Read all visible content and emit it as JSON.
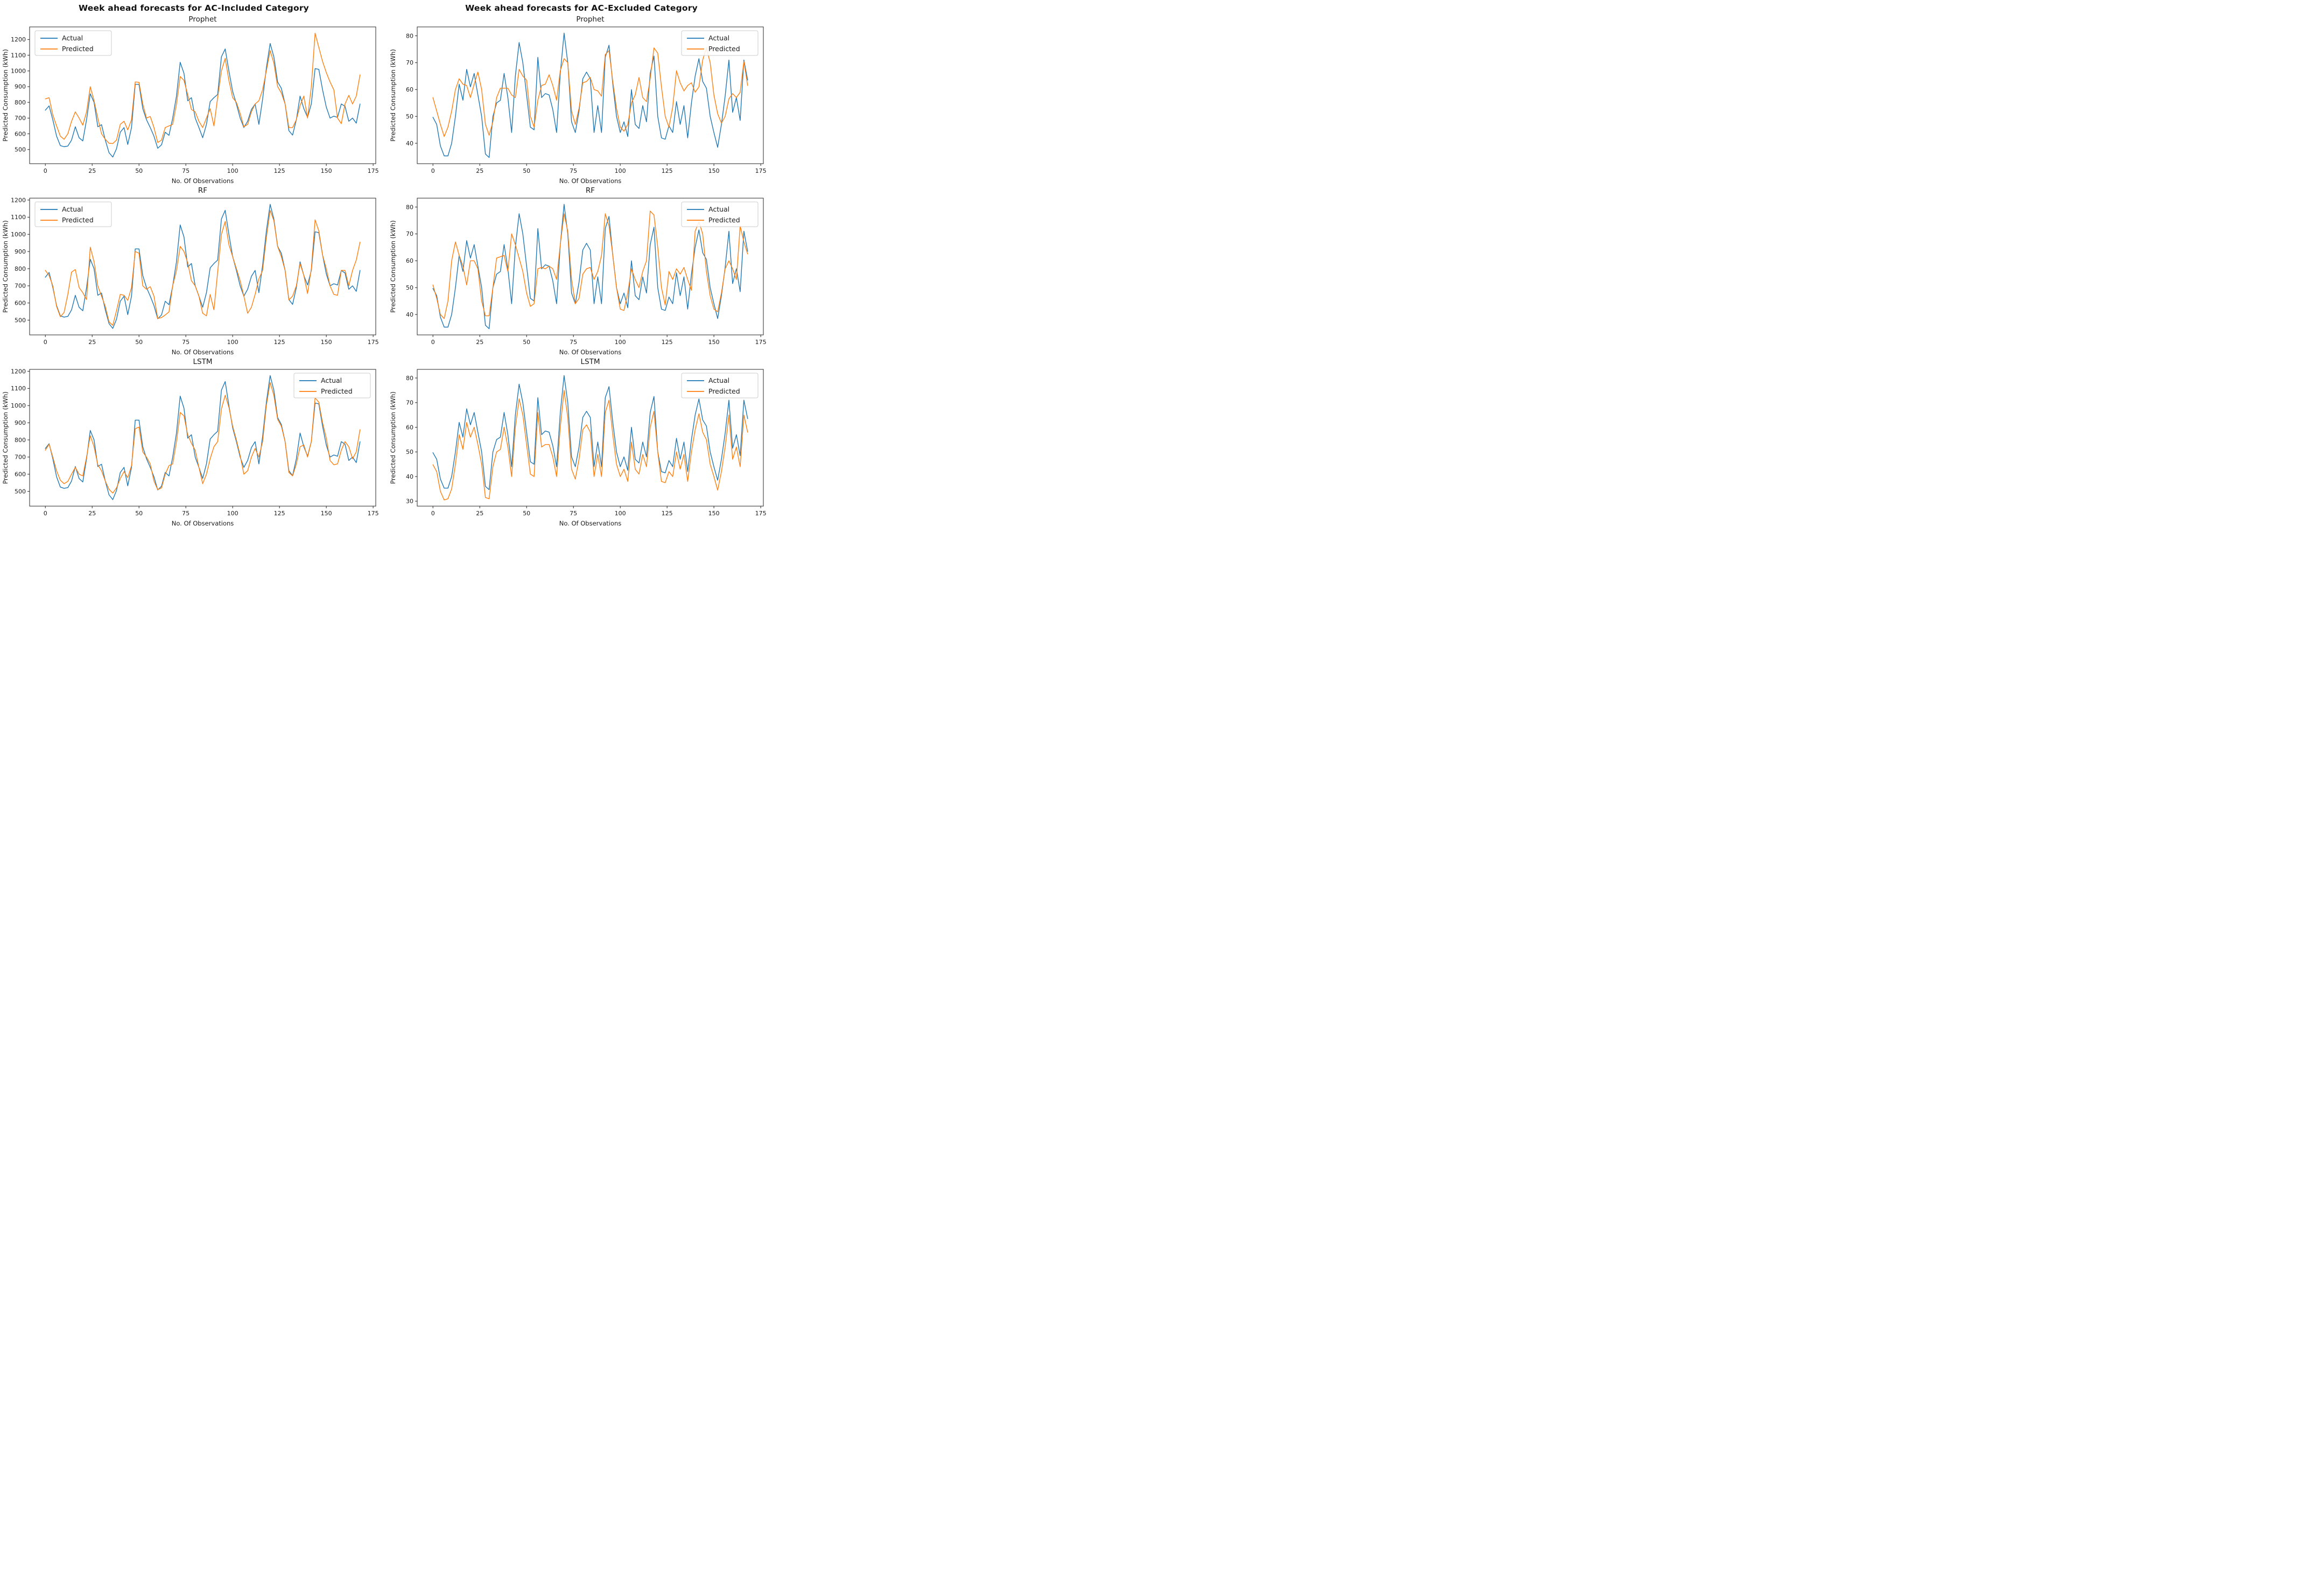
{
  "columns": [
    {
      "title": "Week ahead forecasts for  AC-Included Category"
    },
    {
      "title": "Week ahead forecasts for  AC-Excluded Category"
    }
  ],
  "legend": {
    "actual": "Actual",
    "predicted": "Predicted"
  },
  "colors": {
    "actual": "#1f77b4",
    "predicted": "#ff7f0e",
    "frame": "#262626"
  },
  "shared": {
    "ac_included_actual": [
      750,
      778,
      690,
      585,
      525,
      518,
      522,
      560,
      645,
      575,
      555,
      690,
      855,
      800,
      645,
      658,
      560,
      480,
      452,
      505,
      610,
      640,
      532,
      640,
      915,
      915,
      760,
      690,
      640,
      585,
      508,
      530,
      610,
      590,
      700,
      840,
      1055,
      985,
      810,
      830,
      700,
      640,
      575,
      660,
      805,
      830,
      850,
      1090,
      1140,
      1000,
      870,
      790,
      700,
      640,
      680,
      755,
      790,
      660,
      820,
      1020,
      1175,
      1090,
      930,
      890,
      790,
      620,
      592,
      690,
      840,
      760,
      705,
      790,
      1015,
      1010,
      880,
      770,
      700,
      712,
      705,
      790,
      775,
      680,
      700,
      668,
      790
    ],
    "ac_excluded_actual": [
      49.7,
      47,
      39,
      35.3,
      35.3,
      40,
      50,
      62,
      56,
      67.5,
      61,
      66,
      58,
      50,
      36,
      34.7,
      50,
      55,
      56,
      66,
      57,
      44,
      65,
      77.5,
      70,
      58,
      46,
      45,
      72,
      57,
      58.5,
      58,
      52.5,
      44,
      66,
      81,
      70,
      48,
      44,
      52,
      64,
      66.5,
      64,
      44,
      54,
      44,
      72,
      76.5,
      62,
      50,
      44,
      48,
      42.5,
      60,
      47,
      45.5,
      54,
      48,
      66,
      72.5,
      50,
      42,
      41.5,
      46.5,
      44,
      55.5,
      47,
      54,
      42,
      55,
      65,
      71.5,
      63,
      60.5,
      50,
      44,
      38.5,
      47,
      57.5,
      71,
      51.5,
      57,
      48.5,
      71,
      63.5
    ]
  },
  "chart_data": [
    {
      "id": "prophet-ac-included",
      "type": "line",
      "title": "Prophet",
      "xlabel": "No. Of Observations",
      "ylabel": "Predicted Consumption (kWh)",
      "x_step": 2,
      "xlim": [
        -8.4,
        176.4
      ],
      "ylim": [
        410,
        1280
      ],
      "xticks": [
        0,
        25,
        50,
        75,
        100,
        125,
        150,
        175
      ],
      "yticks": [
        500,
        600,
        700,
        800,
        900,
        1000,
        1100,
        1200
      ],
      "grid": false,
      "legend_position": "top-left",
      "series": [
        {
          "key": "actual",
          "name": "Actual",
          "ref": "ac_included_actual"
        },
        {
          "key": "predicted",
          "name": "Predicted",
          "values": [
            822,
            830,
            720,
            650,
            585,
            565,
            600,
            680,
            740,
            700,
            655,
            740,
            900,
            810,
            700,
            600,
            565,
            540,
            538,
            560,
            660,
            680,
            625,
            690,
            930,
            928,
            790,
            700,
            710,
            640,
            545,
            560,
            640,
            650,
            660,
            790,
            965,
            940,
            850,
            755,
            740,
            680,
            640,
            700,
            760,
            650,
            830,
            1000,
            1080,
            940,
            830,
            800,
            730,
            645,
            660,
            740,
            790,
            810,
            880,
            1000,
            1130,
            1050,
            900,
            860,
            790,
            640,
            640,
            690,
            780,
            840,
            700,
            900,
            1240,
            1150,
            1060,
            990,
            930,
            880,
            700,
            665,
            790,
            845,
            790,
            840,
            975
          ]
        }
      ]
    },
    {
      "id": "prophet-ac-excluded",
      "type": "line",
      "title": "Prophet",
      "xlabel": "No. Of Observations",
      "ylabel": "Predicted Consumption (kWh)",
      "x_step": 2,
      "xlim": [
        -8.4,
        176.4
      ],
      "ylim": [
        32.4,
        83.3
      ],
      "xticks": [
        0,
        25,
        50,
        75,
        100,
        125,
        150,
        175
      ],
      "yticks": [
        40,
        50,
        60,
        70,
        80
      ],
      "grid": false,
      "legend_position": "top-right",
      "series": [
        {
          "key": "actual",
          "name": "Actual",
          "ref": "ac_excluded_actual"
        },
        {
          "key": "predicted",
          "name": "Predicted",
          "values": [
            57,
            52,
            47,
            42.5,
            46,
            52,
            60,
            64,
            62,
            61.5,
            57,
            62,
            66.5,
            60,
            47,
            43,
            48,
            57,
            60.5,
            60.5,
            60.5,
            58,
            57,
            67.5,
            65,
            63.5,
            50,
            46,
            56,
            61.5,
            62,
            65.5,
            61.5,
            56,
            67,
            71.5,
            70,
            52,
            47,
            53,
            62.5,
            63,
            64.5,
            60,
            59.5,
            57.5,
            73,
            74.5,
            63,
            53,
            46,
            44.5,
            47,
            55,
            58,
            64.5,
            57,
            55.5,
            64,
            75.5,
            73.5,
            61,
            50,
            46,
            53.5,
            67,
            62.5,
            59.5,
            61.5,
            62.5,
            59,
            61,
            71,
            75.5,
            70,
            58,
            51,
            47.5,
            50,
            56.5,
            58.5,
            57,
            59,
            70.5,
            61.5
          ]
        }
      ]
    },
    {
      "id": "rf-ac-included",
      "type": "line",
      "title": "RF",
      "xlabel": "No. Of Observations",
      "ylabel": "Predicted Consumption (kWh)",
      "x_step": 2,
      "xlim": [
        -8.4,
        176.4
      ],
      "ylim": [
        414,
        1211
      ],
      "xticks": [
        0,
        25,
        50,
        75,
        100,
        125,
        150,
        175
      ],
      "yticks": [
        500,
        600,
        700,
        800,
        900,
        1000,
        1100,
        1200
      ],
      "grid": false,
      "legend_position": "top-left",
      "series": [
        {
          "key": "actual",
          "name": "Actual",
          "ref": "ac_included_actual"
        },
        {
          "key": "predicted",
          "name": "Predicted",
          "values": [
            790,
            760,
            700,
            580,
            520,
            545,
            650,
            780,
            795,
            690,
            660,
            620,
            925,
            840,
            700,
            640,
            580,
            490,
            470,
            555,
            650,
            645,
            615,
            690,
            900,
            890,
            700,
            680,
            695,
            640,
            510,
            515,
            530,
            548,
            700,
            790,
            930,
            900,
            835,
            730,
            700,
            640,
            540,
            525,
            650,
            560,
            780,
            1000,
            1075,
            940,
            870,
            800,
            730,
            640,
            540,
            575,
            650,
            740,
            790,
            980,
            1140,
            1080,
            930,
            870,
            790,
            618,
            640,
            700,
            830,
            760,
            655,
            800,
            1085,
            1020,
            880,
            800,
            700,
            650,
            645,
            790,
            790,
            700,
            790,
            850,
            955
          ]
        }
      ]
    },
    {
      "id": "rf-ac-excluded",
      "type": "line",
      "title": "RF",
      "xlabel": "No. Of Observations",
      "ylabel": "Predicted Consumption (kWh)",
      "x_step": 2,
      "xlim": [
        -8.4,
        176.4
      ],
      "ylim": [
        32.4,
        83.3
      ],
      "xticks": [
        0,
        25,
        50,
        75,
        100,
        125,
        150,
        175
      ],
      "yticks": [
        40,
        50,
        60,
        70,
        80
      ],
      "grid": false,
      "legend_position": "top-right",
      "series": [
        {
          "key": "actual",
          "name": "Actual",
          "ref": "ac_excluded_actual"
        },
        {
          "key": "predicted",
          "name": "Predicted",
          "values": [
            51,
            46,
            40,
            38.5,
            45,
            60,
            67,
            62,
            58,
            51,
            60,
            60,
            57,
            45,
            39.5,
            39.5,
            50,
            61,
            61.5,
            62,
            56,
            70,
            66,
            61,
            56,
            48,
            43,
            44,
            57,
            57.5,
            57,
            58,
            57,
            53,
            66,
            77.5,
            71,
            53,
            44,
            46,
            55,
            57,
            57.5,
            53,
            56,
            62,
            77.5,
            73,
            62,
            50,
            42,
            41.5,
            48,
            57,
            53,
            50,
            56,
            60,
            78.5,
            77,
            65,
            50,
            43.5,
            56,
            53,
            57,
            55,
            57.5,
            53,
            49,
            71,
            74.5,
            70,
            56,
            47,
            42,
            41,
            48,
            57,
            60,
            57,
            53,
            73,
            67,
            62.5
          ]
        }
      ]
    },
    {
      "id": "lstm-ac-included",
      "type": "line",
      "title": "LSTM",
      "xlabel": "No. Of Observations",
      "ylabel": "Predicted Consumption (kWh)",
      "x_step": 2,
      "xlim": [
        -8.4,
        176.4
      ],
      "ylim": [
        414,
        1211
      ],
      "xticks": [
        0,
        25,
        50,
        75,
        100,
        125,
        150,
        175
      ],
      "yticks": [
        500,
        600,
        700,
        800,
        900,
        1000,
        1100,
        1200
      ],
      "grid": false,
      "legend_position": "top-right",
      "series": [
        {
          "key": "actual",
          "name": "Actual",
          "ref": "ac_included_actual"
        },
        {
          "key": "predicted",
          "name": "Predicted",
          "values": [
            740,
            775,
            700,
            620,
            565,
            545,
            558,
            600,
            640,
            600,
            590,
            700,
            825,
            760,
            655,
            620,
            560,
            512,
            490,
            520,
            575,
            615,
            580,
            650,
            865,
            875,
            730,
            700,
            660,
            560,
            510,
            520,
            600,
            650,
            660,
            790,
            960,
            940,
            830,
            780,
            740,
            640,
            545,
            600,
            690,
            760,
            790,
            980,
            1060,
            990,
            880,
            800,
            710,
            600,
            620,
            700,
            750,
            700,
            790,
            1000,
            1135,
            1060,
            920,
            880,
            790,
            610,
            590,
            660,
            760,
            770,
            700,
            790,
            1045,
            1020,
            900,
            810,
            680,
            655,
            660,
            740,
            790,
            760,
            690,
            730,
            860
          ]
        }
      ]
    },
    {
      "id": "lstm-ac-excluded",
      "type": "line",
      "title": "LSTM",
      "xlabel": "No. Of Observations",
      "ylabel": "Predicted Consumption (kWh)",
      "x_step": 2,
      "xlim": [
        -8.4,
        176.4
      ],
      "ylim": [
        28,
        83.5
      ],
      "xticks": [
        0,
        25,
        50,
        75,
        100,
        125,
        150,
        175
      ],
      "yticks": [
        30,
        40,
        50,
        60,
        70,
        80
      ],
      "grid": false,
      "legend_position": "top-right",
      "series": [
        {
          "key": "actual",
          "name": "Actual",
          "ref": "ac_excluded_actual"
        },
        {
          "key": "predicted",
          "name": "Predicted",
          "values": [
            44.8,
            42,
            34,
            30.5,
            31,
            35,
            45,
            57,
            51,
            62,
            56,
            60,
            53,
            45,
            31.5,
            31,
            44,
            50,
            51,
            60,
            52,
            40,
            60,
            71.5,
            65,
            53,
            41,
            40,
            66,
            52,
            53,
            53,
            48,
            40,
            60,
            75,
            64,
            43,
            39,
            47,
            59,
            61,
            58,
            40,
            49,
            40,
            66,
            71,
            57,
            45,
            40,
            43,
            38,
            54,
            43,
            41,
            49,
            44,
            60,
            66.5,
            50,
            38,
            37.5,
            42,
            40,
            50,
            43,
            49,
            38,
            50,
            59,
            65.5,
            58,
            55,
            45,
            40,
            34.5,
            42,
            52,
            65,
            47,
            52,
            44,
            65,
            58
          ]
        }
      ]
    }
  ]
}
